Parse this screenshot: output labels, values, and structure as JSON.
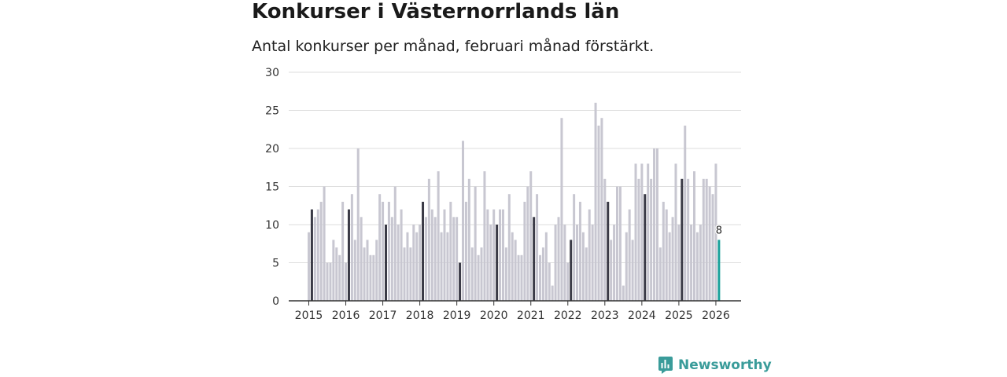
{
  "header": {
    "title": "Konkurser i Västernorrlands län",
    "subtitle": "Antal konkurser per månad, februari månad förstärkt."
  },
  "brand": {
    "name": "Newsworthy"
  },
  "colors": {
    "bar": "#c8c7d1",
    "highlight": "#3a3a46",
    "latest": "#1aa19a",
    "grid": "#dddddd",
    "axis": "#333333",
    "brand": "#3a9c9a"
  },
  "chart_data": {
    "type": "bar",
    "title": "Konkurser i Västernorrlands län",
    "subtitle": "Antal konkurser per månad, februari månad förstärkt.",
    "xlabel": "",
    "ylabel": "",
    "ylim": [
      0,
      30
    ],
    "yticks": [
      0,
      5,
      10,
      15,
      20,
      25,
      30
    ],
    "grid": true,
    "start": "2015-01",
    "highlight_month": "februari",
    "year_labels": [
      "2015",
      "2016",
      "2017",
      "2018",
      "2019",
      "2020",
      "2021",
      "2022",
      "2023",
      "2024",
      "2025",
      "2026"
    ],
    "values": [
      9,
      12,
      11,
      12,
      13,
      15,
      5,
      5,
      8,
      7,
      6,
      13,
      5,
      12,
      14,
      8,
      20,
      11,
      7,
      8,
      6,
      6,
      8,
      14,
      13,
      10,
      13,
      11,
      15,
      10,
      12,
      7,
      9,
      7,
      10,
      9,
      10,
      13,
      11,
      16,
      12,
      11,
      17,
      9,
      12,
      9,
      13,
      11,
      11,
      5,
      21,
      13,
      16,
      7,
      15,
      6,
      7,
      17,
      12,
      10,
      12,
      10,
      12,
      12,
      7,
      14,
      9,
      8,
      6,
      6,
      13,
      15,
      17,
      11,
      14,
      6,
      7,
      9,
      5,
      2,
      10,
      11,
      24,
      10,
      5,
      8,
      14,
      10,
      13,
      9,
      7,
      12,
      10,
      26,
      23,
      24,
      16,
      13,
      8,
      10,
      15,
      15,
      2,
      9,
      12,
      8,
      18,
      16,
      18,
      14,
      18,
      16,
      20,
      20,
      7,
      13,
      12,
      9,
      11,
      18,
      10,
      16,
      23,
      16,
      10,
      17,
      9,
      10,
      16,
      16,
      15,
      14,
      18,
      8
    ],
    "last_value_label": "8"
  }
}
